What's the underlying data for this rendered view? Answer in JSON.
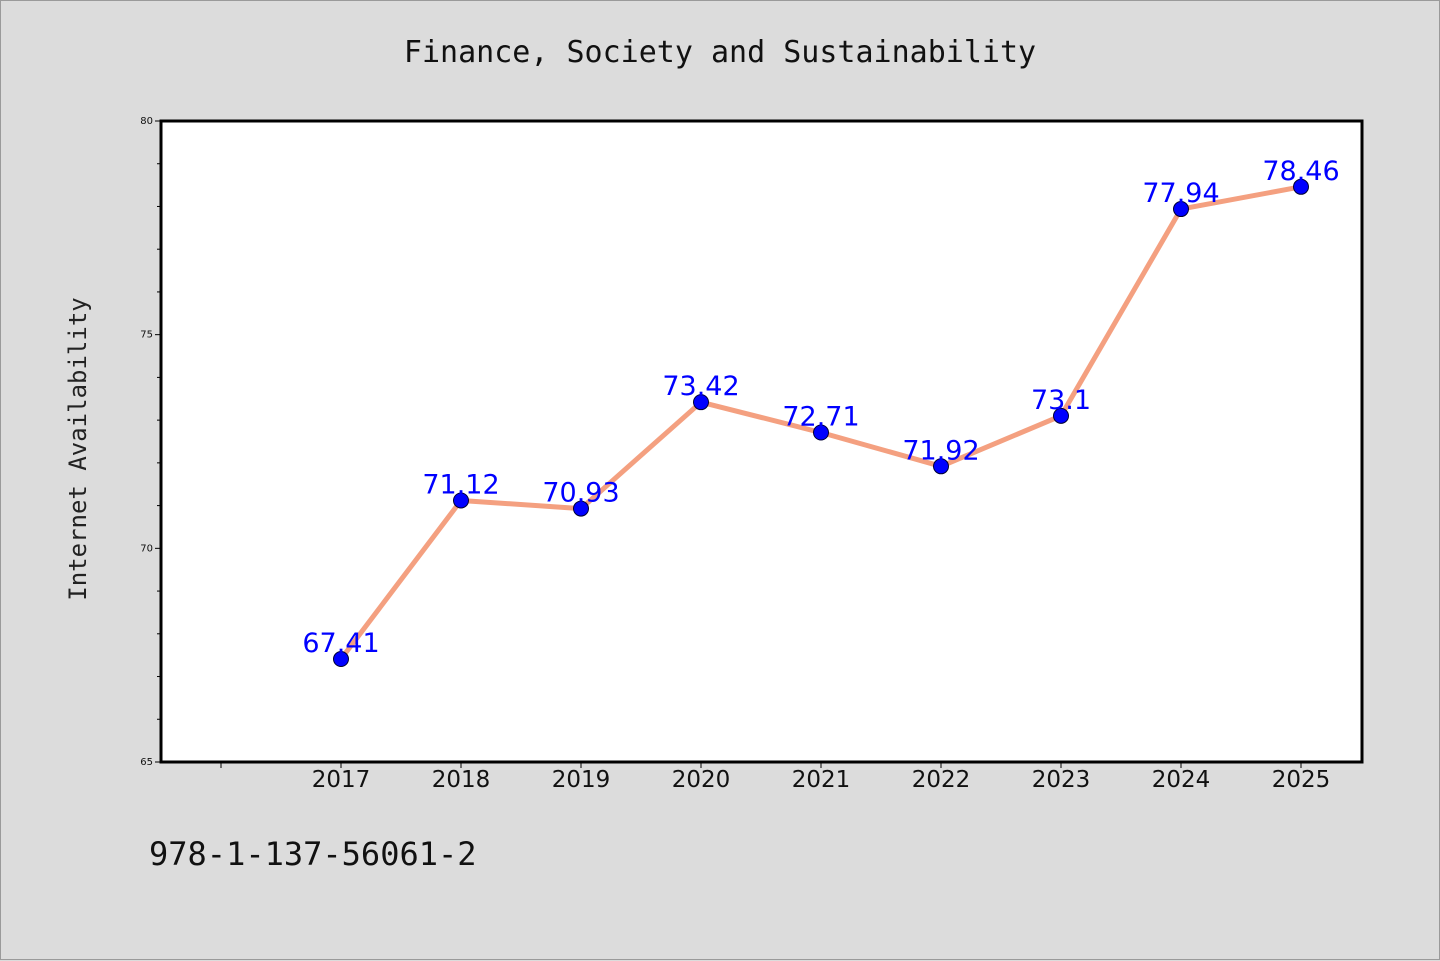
{
  "chart_data": {
    "type": "line",
    "title": "Finance, Society and Sustainability",
    "xlabel": "",
    "ylabel": "Internet Availability",
    "x": [
      "2017",
      "2018",
      "2019",
      "2020",
      "2021",
      "2022",
      "2023",
      "2024",
      "2025"
    ],
    "values": [
      67.41,
      71.12,
      70.93,
      73.42,
      72.71,
      71.92,
      73.1,
      77.94,
      78.46
    ],
    "data_labels": [
      "67.41",
      "71.12",
      "70.93",
      "73.42",
      "72.71",
      "71.92",
      "73.1",
      "77.94",
      "78.46"
    ],
    "ylim": [
      65,
      80
    ],
    "yticks": [
      65,
      70,
      75,
      80
    ],
    "grid": false,
    "legend": false,
    "line_color": "#f4a080",
    "marker_color": "#0000ff",
    "label_color": "#0000ff"
  },
  "footer": {
    "isbn": "978-1-137-56061-2"
  }
}
